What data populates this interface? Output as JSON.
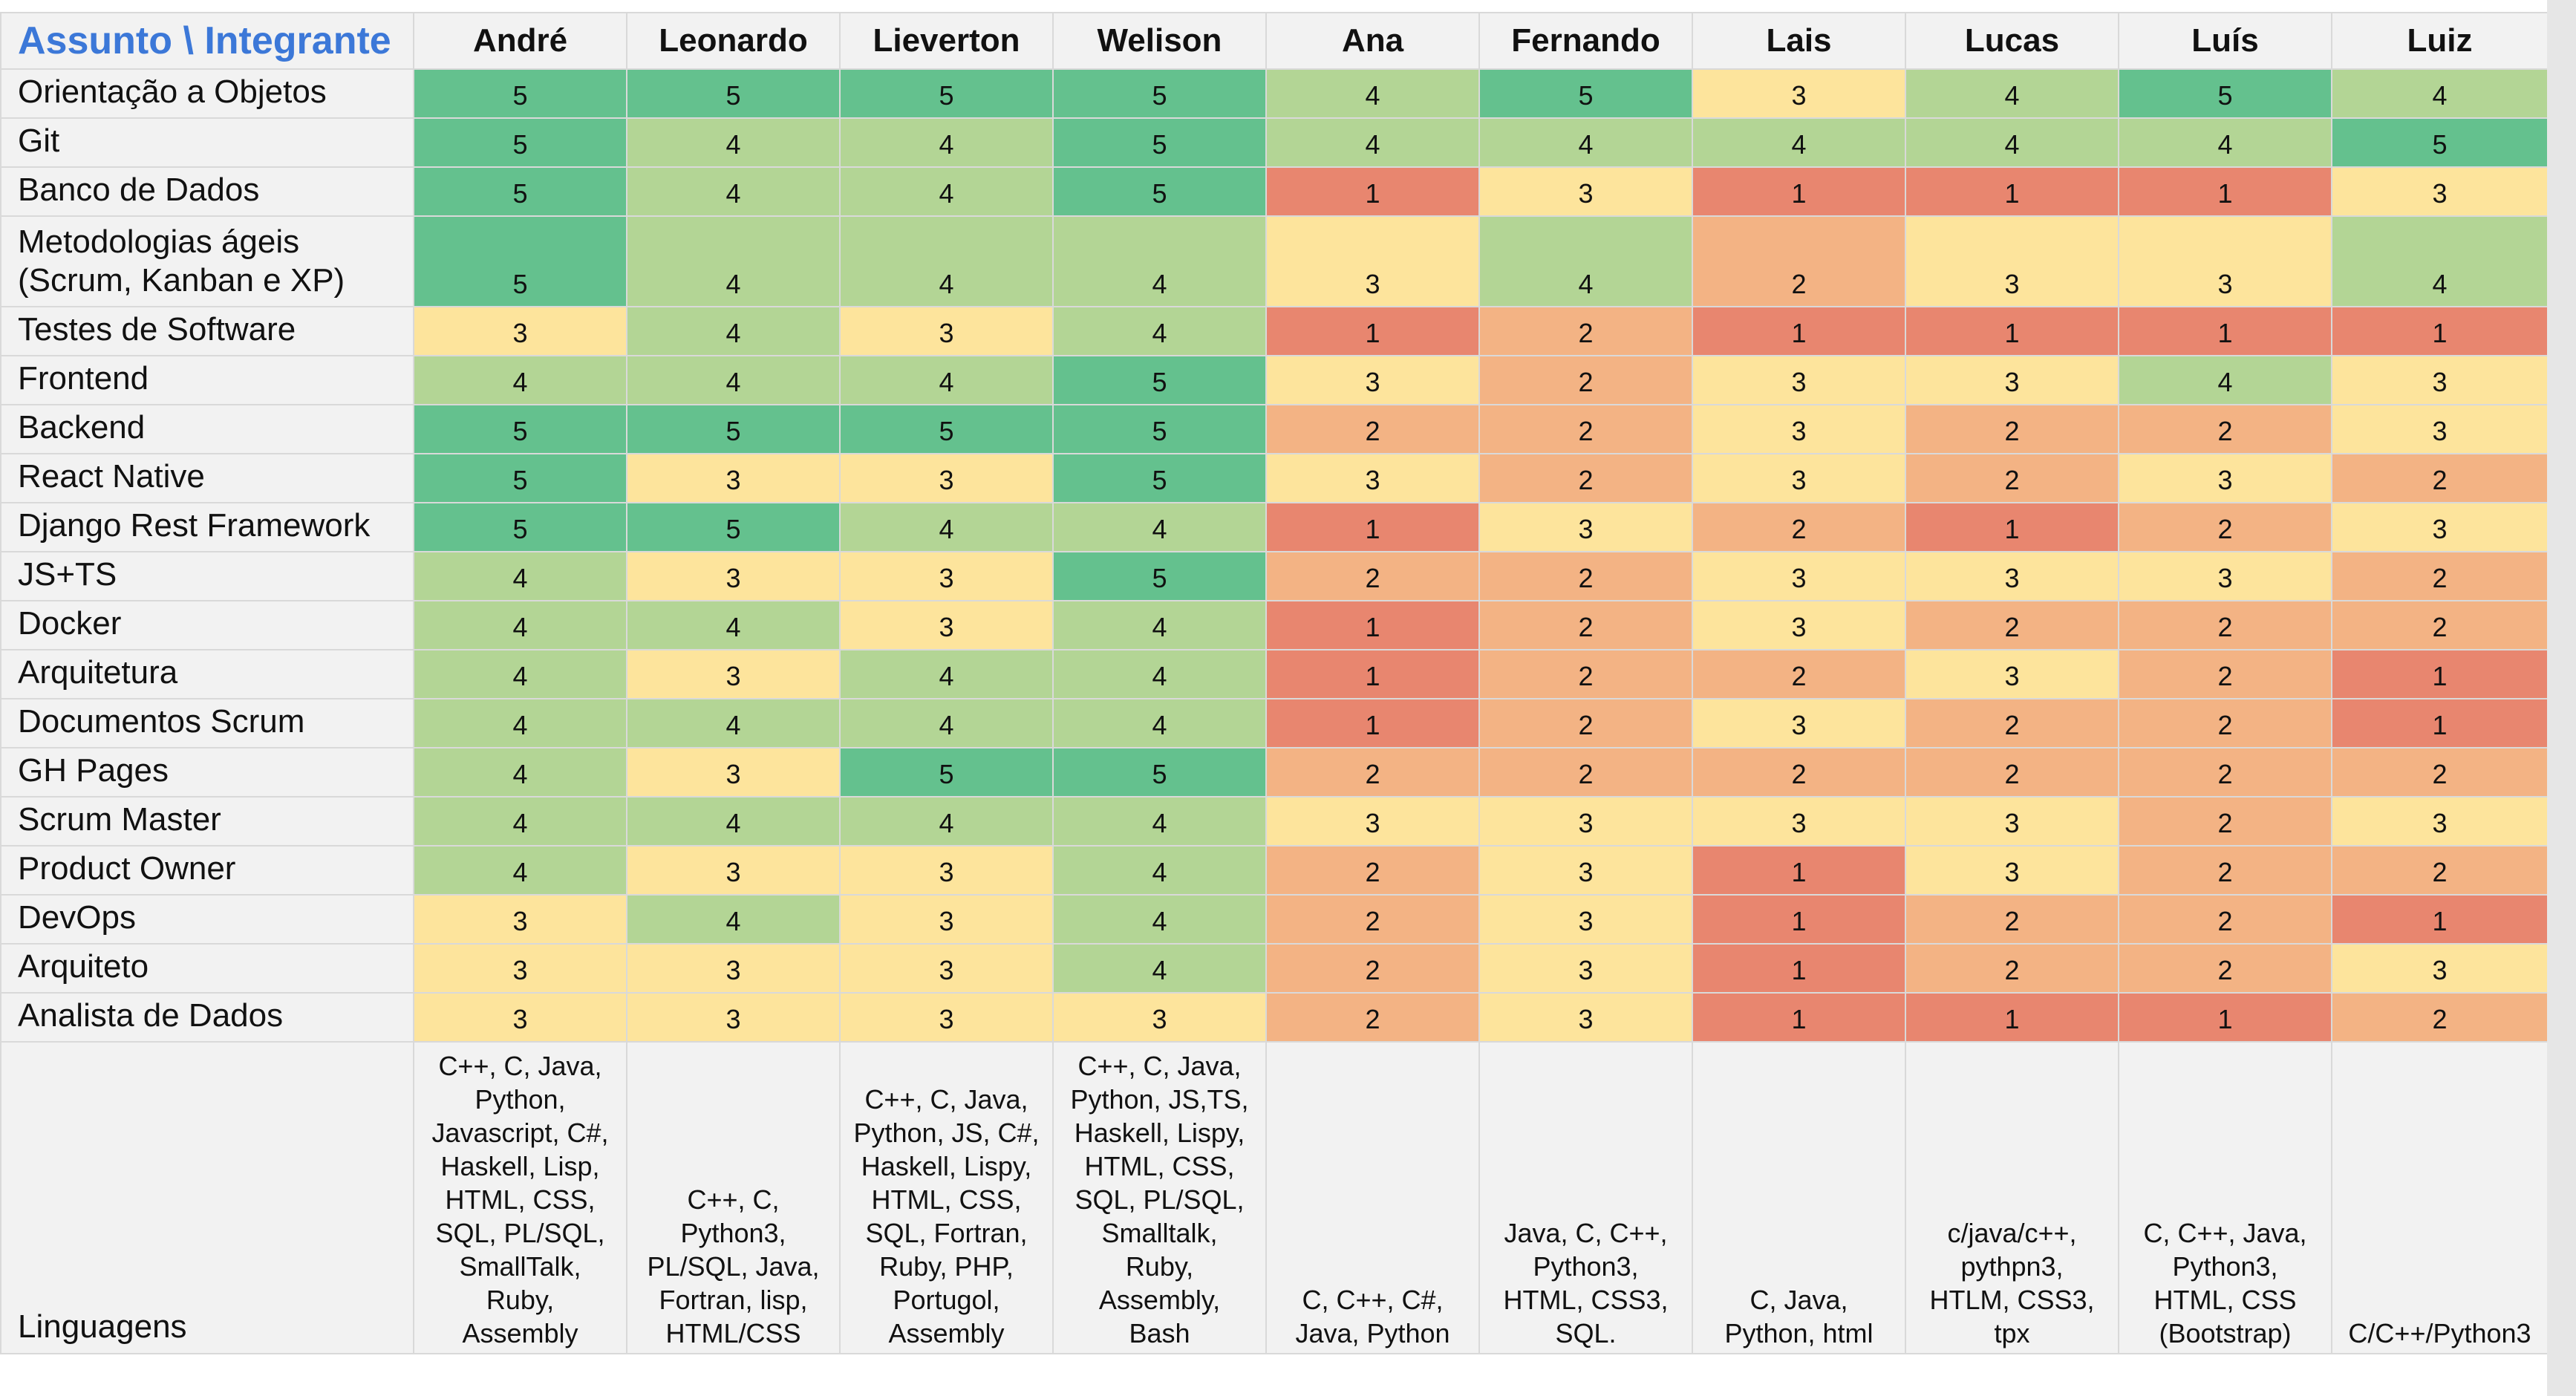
{
  "sheet": {
    "corner_label": "Assunto \\ Integrante",
    "columns": [
      "André",
      "Leonardo",
      "Lieverton",
      "Welison",
      "Ana",
      "Fernando",
      "Lais",
      "Lucas",
      "Luís",
      "Luiz"
    ],
    "rows": [
      {
        "label": "Orientação a Objetos",
        "scores": [
          5,
          5,
          5,
          5,
          4,
          5,
          3,
          4,
          5,
          4
        ]
      },
      {
        "label": "Git",
        "scores": [
          5,
          4,
          4,
          5,
          4,
          4,
          4,
          4,
          4,
          5
        ]
      },
      {
        "label": "Banco de Dados",
        "scores": [
          5,
          4,
          4,
          5,
          1,
          3,
          1,
          1,
          1,
          3
        ]
      },
      {
        "label": "Metodologias ágeis\n(Scrum, Kanban e XP)",
        "scores": [
          5,
          4,
          4,
          4,
          3,
          4,
          2,
          3,
          3,
          4
        ],
        "tall": true
      },
      {
        "label": "Testes de Software",
        "scores": [
          3,
          4,
          3,
          4,
          1,
          2,
          1,
          1,
          1,
          1
        ]
      },
      {
        "label": "Frontend",
        "scores": [
          4,
          4,
          4,
          5,
          3,
          2,
          3,
          3,
          4,
          3
        ]
      },
      {
        "label": "Backend",
        "scores": [
          5,
          5,
          5,
          5,
          2,
          2,
          3,
          2,
          2,
          3
        ]
      },
      {
        "label": "React Native",
        "scores": [
          5,
          3,
          3,
          5,
          3,
          2,
          3,
          2,
          3,
          2
        ]
      },
      {
        "label": "Django Rest Framework",
        "scores": [
          5,
          5,
          4,
          4,
          1,
          3,
          2,
          1,
          2,
          3
        ]
      },
      {
        "label": "JS+TS",
        "scores": [
          4,
          3,
          3,
          5,
          2,
          2,
          3,
          3,
          3,
          2
        ]
      },
      {
        "label": "Docker",
        "scores": [
          4,
          4,
          3,
          4,
          1,
          2,
          3,
          2,
          2,
          2
        ]
      },
      {
        "label": "Arquitetura",
        "scores": [
          4,
          3,
          4,
          4,
          1,
          2,
          2,
          3,
          2,
          1
        ]
      },
      {
        "label": "Documentos Scrum",
        "scores": [
          4,
          4,
          4,
          4,
          1,
          2,
          3,
          2,
          2,
          1
        ]
      },
      {
        "label": "GH Pages",
        "scores": [
          4,
          3,
          5,
          5,
          2,
          2,
          2,
          2,
          2,
          2
        ]
      },
      {
        "label": "Scrum Master",
        "scores": [
          4,
          4,
          4,
          4,
          3,
          3,
          3,
          3,
          2,
          3
        ]
      },
      {
        "label": "Product Owner",
        "scores": [
          4,
          3,
          3,
          4,
          2,
          3,
          1,
          3,
          2,
          2
        ]
      },
      {
        "label": "DevOps",
        "scores": [
          3,
          4,
          3,
          4,
          2,
          3,
          1,
          2,
          2,
          1
        ]
      },
      {
        "label": "Arquiteto",
        "scores": [
          3,
          3,
          3,
          4,
          2,
          3,
          1,
          2,
          2,
          3
        ]
      },
      {
        "label": "Analista de Dados",
        "scores": [
          3,
          3,
          3,
          3,
          2,
          3,
          1,
          1,
          1,
          2
        ]
      }
    ],
    "languages_label": "Linguagens",
    "languages": [
      "C++, C, Java,\nPython,\nJavascript, C#,\nHaskell, Lisp,\nHTML, CSS,\nSQL, PL/SQL,\nSmallTalk,\nRuby,\nAssembly",
      "C++, C,\nPython3,\nPL/SQL, Java,\nFortran, lisp,\nHTML/CSS",
      "C++, C, Java,\nPython, JS, C#,\nHaskell, Lispy,\nHTML, CSS,\nSQL, Fortran,\nRuby, PHP,\nPortugol,\nAssembly",
      "C++, C, Java,\nPython, JS,TS,\nHaskell, Lispy,\nHTML, CSS,\nSQL, PL/SQL,\nSmalltalk,\nRuby,\nAssembly,\nBash",
      "C, C++, C#,\nJava, Python",
      "Java, C, C++,\nPython3,\nHTML, CSS3,\nSQL.",
      "C, Java,\nPython, html",
      "c/java/c++,\npythpn3,\nHTLM, CSS3,\ntpx",
      "C, C++, Java,\nPython3,\nHTML, CSS\n(Bootstrap)",
      "C/C++/Python3"
    ],
    "score_colors": {
      "1": "#e8866f",
      "2": "#f3b384",
      "3": "#fde49c",
      "4": "#b3d595",
      "5": "#64c18e"
    }
  }
}
